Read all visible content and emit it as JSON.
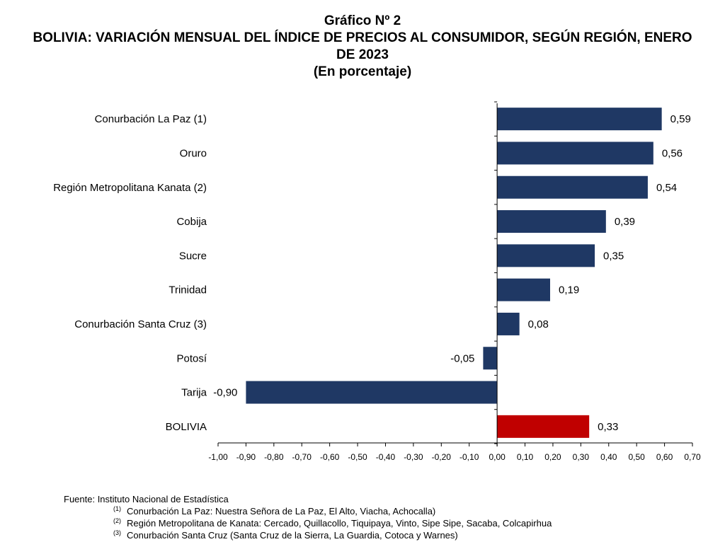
{
  "header": {
    "chart_number": "Gráfico Nº 2",
    "title": "BOLIVIA: VARIACIÓN MENSUAL DEL ÍNDICE DE PRECIOS AL CONSUMIDOR, SEGÚN REGIÓN, ENERO DE 2023",
    "subtitle": "(En porcentaje)"
  },
  "chart_data": {
    "type": "bar",
    "orientation": "horizontal",
    "title": "BOLIVIA: VARIACIÓN MENSUAL DEL ÍNDICE DE PRECIOS AL CONSUMIDOR, SEGÚN REGIÓN, ENERO DE 2023",
    "subtitle": "(En porcentaje)",
    "categories": [
      "Conurbación La Paz (1)",
      "Oruro",
      "Región Metropolitana Kanata (2)",
      "Cobija",
      "Sucre",
      "Trinidad",
      "Conurbación Santa Cruz (3)",
      "Potosí",
      "Tarija",
      "BOLIVIA"
    ],
    "values": [
      0.59,
      0.56,
      0.54,
      0.39,
      0.35,
      0.19,
      0.08,
      -0.05,
      -0.9,
      0.33
    ],
    "value_labels": [
      "0,59",
      "0,56",
      "0,54",
      "0,39",
      "0,35",
      "0,19",
      "0,08",
      "-0,05",
      "-0,90",
      "0,33"
    ],
    "xlim": [
      -1.0,
      0.7
    ],
    "xticks": [
      "-1,00",
      "-0,90",
      "-0,80",
      "-0,70",
      "-0,60",
      "-0,50",
      "-0,40",
      "-0,30",
      "-0,20",
      "-0,10",
      "0,00",
      "0,10",
      "0,20",
      "0,30",
      "0,40",
      "0,50",
      "0,60",
      "0,70"
    ],
    "xlabel": "",
    "ylabel": "",
    "grid": false,
    "legend": "none",
    "colors": {
      "default": "#1f3864",
      "highlight": "#c00000",
      "highlight_category": "BOLIVIA"
    }
  },
  "footnotes": {
    "source": "Fuente: Instituto Nacional de Estadística",
    "notes": [
      {
        "mark": "(1)",
        "text": "Conurbación La Paz: Nuestra Señora de La Paz, El Alto, Viacha, Achocalla)"
      },
      {
        "mark": "(2)",
        "text": "Región Metropolitana de Kanata: Cercado, Quillacollo, Tiquipaya, Vinto, Sipe Sipe, Sacaba, Colcapirhua"
      },
      {
        "mark": "(3)",
        "text": "Conurbación Santa Cruz (Santa Cruz de la Sierra, La Guardia, Cotoca y Warnes)"
      }
    ]
  }
}
